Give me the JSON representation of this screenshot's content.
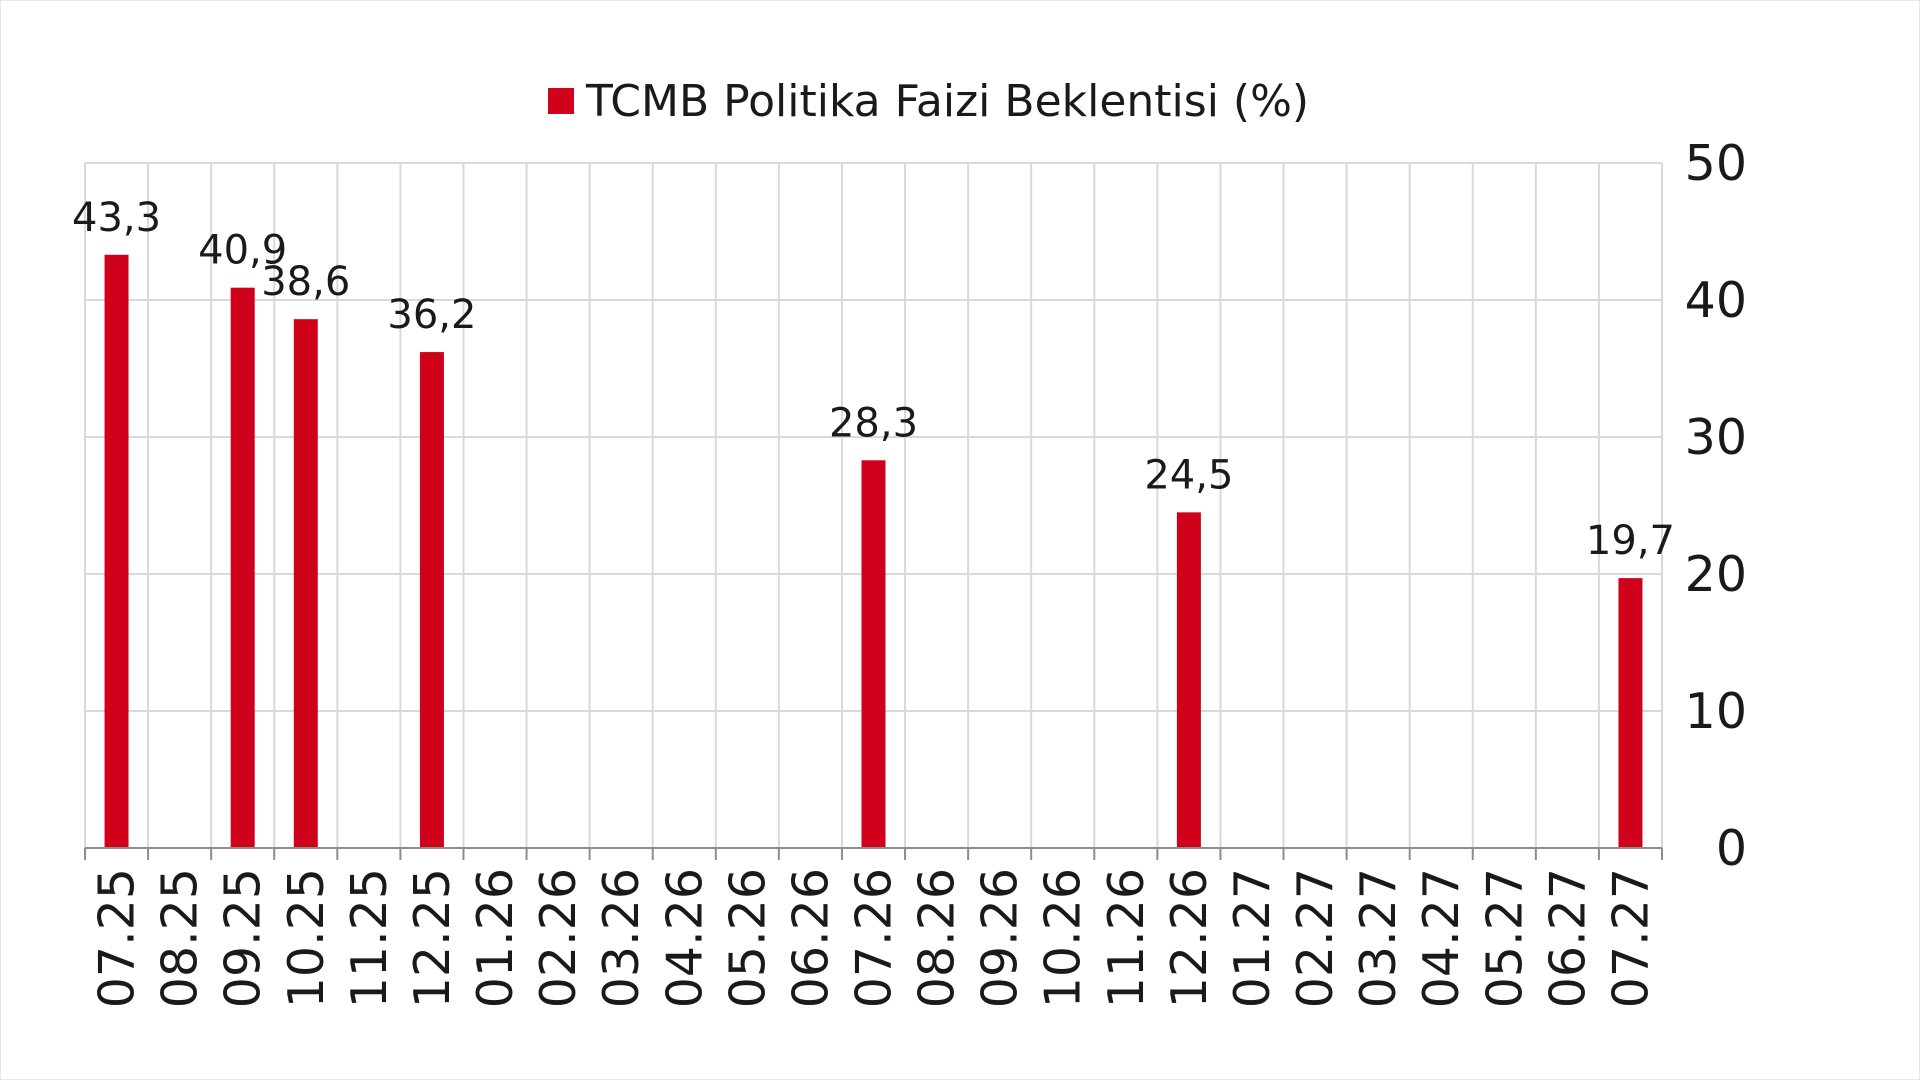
{
  "chart_data": {
    "type": "bar",
    "legend": {
      "label": "TCMB Politika Faizi Beklentisi (%)",
      "position": "top-center"
    },
    "categories": [
      "07.25",
      "08.25",
      "09.25",
      "10.25",
      "11.25",
      "12.25",
      "01.26",
      "02.26",
      "03.26",
      "04.26",
      "05.26",
      "06.26",
      "07.26",
      "08.26",
      "09.26",
      "10.26",
      "11.26",
      "12.26",
      "01.27",
      "02.27",
      "03.27",
      "04.27",
      "05.27",
      "06.27",
      "07.27"
    ],
    "series": [
      {
        "name": "TCMB Politika Faizi Beklentisi (%)",
        "color": "#d0021b",
        "values": [
          43.3,
          null,
          40.9,
          38.6,
          null,
          36.2,
          null,
          null,
          null,
          null,
          null,
          null,
          28.3,
          null,
          null,
          null,
          null,
          24.5,
          null,
          null,
          null,
          null,
          null,
          null,
          19.7
        ],
        "labels": [
          "43,3",
          null,
          "40,9",
          "38,6",
          null,
          "36,2",
          null,
          null,
          null,
          null,
          null,
          null,
          "28,3",
          null,
          null,
          null,
          null,
          "24,5",
          null,
          null,
          null,
          null,
          null,
          null,
          "19,7"
        ]
      }
    ],
    "y_axis": {
      "position": "right",
      "min": 0,
      "max": 50,
      "ticks": [
        "0",
        "10",
        "20",
        "30",
        "40",
        "50"
      ]
    },
    "grid": true,
    "x_tick_rotation": "vertical"
  }
}
